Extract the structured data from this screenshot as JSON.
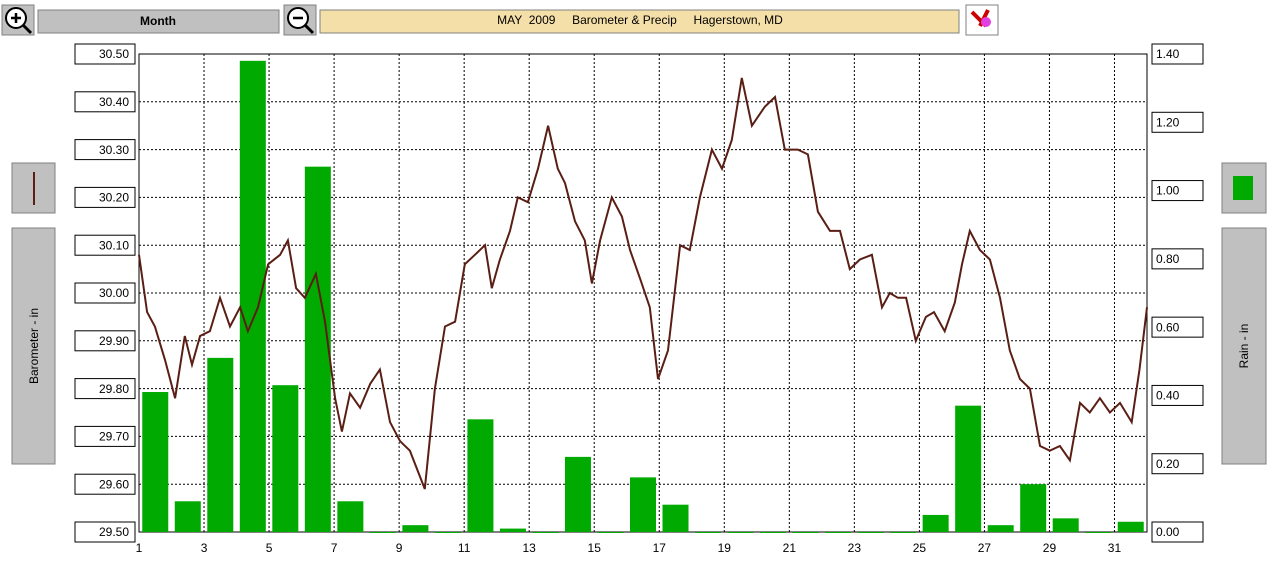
{
  "toolbar": {
    "period": "Month",
    "title": "MAY  2009     Barometer & Precip     Hagerstown, MD"
  },
  "chart_data": {
    "type": "line-bar",
    "ylabel": "Barometer - in",
    "y2label": "Rain - in",
    "xlim": [
      1,
      32
    ],
    "xticks": [
      1,
      3,
      5,
      7,
      9,
      11,
      13,
      15,
      17,
      19,
      21,
      23,
      25,
      27,
      29,
      31
    ],
    "ylim": [
      29.5,
      30.5
    ],
    "yticks": [
      {
        "value": 29.5,
        "label": "29.50"
      },
      {
        "value": 29.6,
        "label": "29.60"
      },
      {
        "value": 29.7,
        "label": "29.70"
      },
      {
        "value": 29.8,
        "label": "29.80"
      },
      {
        "value": 29.9,
        "label": "29.90"
      },
      {
        "value": 30.0,
        "label": "30.00"
      },
      {
        "value": 30.1,
        "label": "30.10"
      },
      {
        "value": 30.2,
        "label": "30.20"
      },
      {
        "value": 30.3,
        "label": "30.30"
      },
      {
        "value": 30.4,
        "label": "30.40"
      },
      {
        "value": 30.5,
        "label": "30.50"
      }
    ],
    "y2lim": [
      0,
      1.4
    ],
    "y2ticks": [
      {
        "value": 0,
        "label": "0.00"
      },
      {
        "value": 0.2,
        "label": "0.20"
      },
      {
        "value": 0.4,
        "label": "0.40"
      },
      {
        "value": 0.6,
        "label": "0.60"
      },
      {
        "value": 0.8,
        "label": "0.80"
      },
      {
        "value": 1.0,
        "label": "1.00"
      },
      {
        "value": 1.2,
        "label": "1.20"
      },
      {
        "value": 1.4,
        "label": "1.40"
      }
    ],
    "grid": true,
    "series": [
      {
        "type": "line",
        "color": "#5a1e14",
        "x": [
          1.0,
          1.25,
          1.49,
          1.8,
          2.11,
          2.41,
          2.63,
          2.88,
          3.18,
          3.49,
          3.8,
          4.11,
          4.35,
          4.66,
          4.97,
          5.34,
          5.58,
          5.83,
          6.1,
          6.44,
          6.72,
          7.03,
          7.24,
          7.49,
          7.8,
          8.11,
          8.41,
          8.72,
          9.03,
          9.33,
          9.79,
          10.1,
          10.41,
          10.72,
          11.02,
          11.33,
          11.64,
          11.85,
          12.1,
          12.41,
          12.65,
          12.96,
          13.27,
          13.58,
          13.88,
          14.1,
          14.41,
          14.71,
          14.93,
          15.18,
          15.54,
          15.85,
          16.1,
          16.41,
          16.71,
          16.96,
          17.27,
          17.64,
          17.94,
          18.25,
          18.62,
          18.93,
          19.23,
          19.54,
          19.85,
          20.25,
          20.56,
          20.86,
          21.26,
          21.57,
          21.88,
          22.25,
          22.56,
          22.86,
          23.17,
          23.54,
          23.85,
          24.09,
          24.34,
          24.59,
          24.89,
          25.2,
          25.45,
          25.78,
          26.09,
          26.31,
          26.55,
          26.86,
          27.17,
          27.48,
          27.78,
          28.09,
          28.4,
          28.71,
          29.01,
          29.32,
          29.63,
          29.94,
          30.24,
          30.55,
          30.86,
          31.17,
          31.53,
          31.77,
          32.0
        ],
        "values": [
          30.08,
          29.96,
          29.93,
          29.86,
          29.78,
          29.91,
          29.85,
          29.91,
          29.92,
          29.99,
          29.93,
          29.97,
          29.92,
          29.97,
          30.06,
          30.08,
          30.11,
          30.01,
          29.99,
          30.04,
          29.94,
          29.78,
          29.71,
          29.79,
          29.76,
          29.81,
          29.84,
          29.73,
          29.69,
          29.67,
          29.59,
          29.8,
          29.93,
          29.94,
          30.06,
          30.08,
          30.1,
          30.01,
          30.07,
          30.13,
          30.2,
          30.19,
          30.26,
          30.35,
          30.26,
          30.23,
          30.15,
          30.11,
          30.02,
          30.11,
          30.2,
          30.16,
          30.09,
          30.03,
          29.97,
          29.82,
          29.88,
          30.1,
          30.09,
          30.2,
          30.3,
          30.26,
          30.32,
          30.45,
          30.35,
          30.39,
          30.41,
          30.3,
          30.3,
          30.29,
          30.17,
          30.13,
          30.13,
          30.05,
          30.07,
          30.08,
          29.97,
          30.0,
          29.99,
          29.99,
          29.9,
          29.95,
          29.96,
          29.92,
          29.98,
          30.06,
          30.13,
          30.09,
          30.07,
          29.99,
          29.88,
          29.82,
          29.8,
          29.68,
          29.67,
          29.68,
          29.65,
          29.77,
          29.75,
          29.78,
          29.75,
          29.77,
          29.73,
          29.84,
          29.97
        ]
      },
      {
        "type": "bar",
        "axis": "y2",
        "color": "#00aa00",
        "x": [
          1,
          2,
          3,
          4,
          5,
          6,
          7,
          8,
          9,
          10,
          11,
          12,
          13,
          14,
          15,
          16,
          17,
          18,
          19,
          20,
          21,
          22,
          23,
          24,
          25,
          26,
          27,
          28,
          29,
          30,
          31
        ],
        "values": [
          0.41,
          0.09,
          0.51,
          1.38,
          0.43,
          1.07,
          0.09,
          0,
          0.02,
          0,
          0.33,
          0.01,
          0,
          0.22,
          0,
          0.16,
          0.08,
          0,
          0,
          0,
          0,
          0,
          0,
          0,
          0.05,
          0.37,
          0.02,
          0.14,
          0.04,
          0,
          0.03
        ]
      }
    ]
  }
}
